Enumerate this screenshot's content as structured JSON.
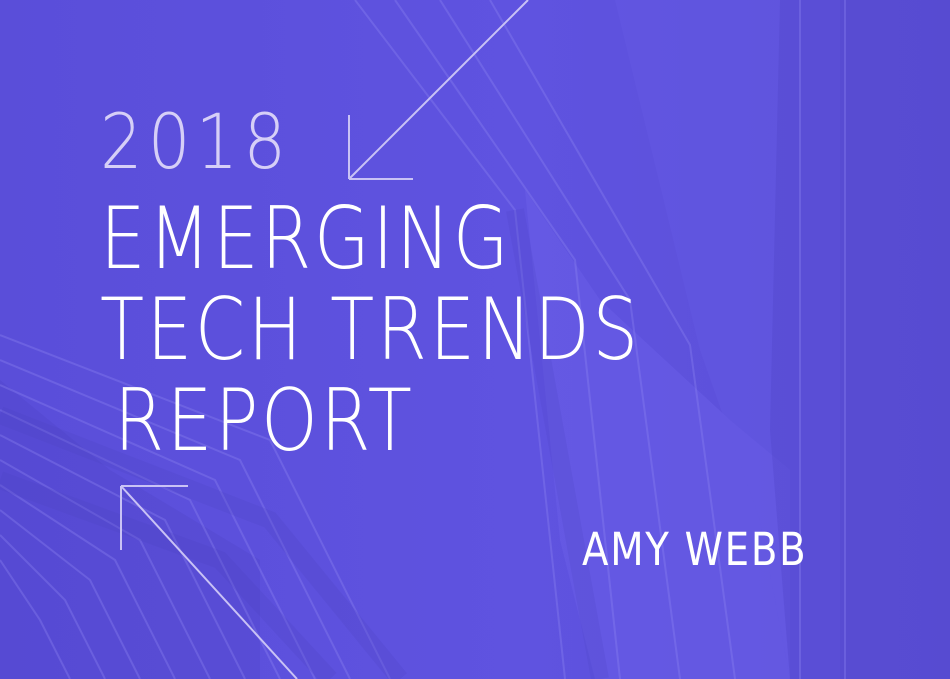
{
  "cover": {
    "year": "2018",
    "title_lines": [
      "EMERGING",
      "TECH TRENDS",
      "REPORT"
    ],
    "author": "AMY WEBB"
  },
  "colors": {
    "background": "#5b4fd8",
    "text": "#ffffff",
    "year_text": "#d6cff7",
    "arrow_line": "#c9c2f5"
  },
  "icons": [
    "arrow-up-left-icon",
    "arrow-down-left-icon"
  ]
}
